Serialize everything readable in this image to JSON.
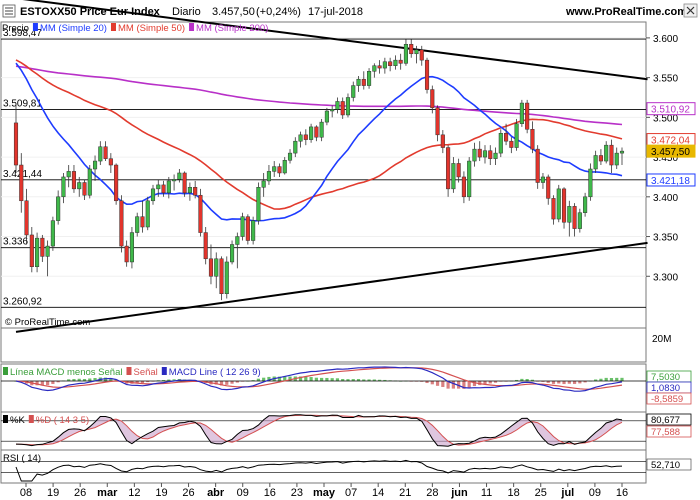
{
  "header": {
    "title": "ESTOXX50 Price Eur Index",
    "period": "Diario",
    "price": "3.457,50",
    "change": "(+0,24%)",
    "date": "17-jul-2018",
    "brand": "www.ProRealTime.com"
  },
  "price_legend": [
    {
      "label": "Precio",
      "color": "#000000"
    },
    {
      "label": "MM (Simple 20)",
      "color": "#1e3cff"
    },
    {
      "label": "MM (Simple 50)",
      "color": "#e23b2e"
    },
    {
      "label": "MM (Simple 200)",
      "color": "#b830c8"
    }
  ],
  "copyright": "© ProRealTime.com",
  "volume_label": "20M",
  "macd_legend": [
    {
      "label": "Línea MACD menos Señal",
      "color": "#3a9e3a"
    },
    {
      "label": "Señal",
      "color": "#d45050"
    },
    {
      "label": "MACD Line ( 12 26 9)",
      "color": "#2a2ac0"
    }
  ],
  "macd_values": [
    "7,5030",
    "1,0830",
    "-8,5859"
  ],
  "stoch_legend": [
    {
      "label": "%K",
      "color": "#000000"
    },
    {
      "label": "%D ( 14 3 5)",
      "color": "#d45050"
    }
  ],
  "stoch_values": [
    "80,677",
    "77,588"
  ],
  "rsi_legend": [
    {
      "label": "RSI ( 14)",
      "color": "#000000"
    }
  ],
  "rsi_value": "52,710",
  "horizontal_levels": [
    "3.598,47",
    "3.509,81",
    "3.421,44",
    "3.336",
    "3.260,92"
  ],
  "colors": {
    "up": "#3fb94a",
    "down": "#e3342c",
    "sma20": "#1e3cff",
    "sma50": "#e23b2e",
    "sma200": "#b830c8",
    "level_label": "#6060ff"
  },
  "chart_data": {
    "type": "candlestick",
    "title": "ESTOXX50 Price Eur Index",
    "ylim": [
      3250,
      3620
    ],
    "y_ticks": [
      "3.600",
      "3.550",
      "3.500",
      "3.450",
      "3.400",
      "3.350",
      "3.300"
    ],
    "x_ticks": [
      "08",
      "19",
      "26",
      "mar",
      "12",
      "19",
      "26",
      "abr",
      "09",
      "16",
      "23",
      "may",
      "07",
      "14",
      "21",
      "28",
      "jun",
      "11",
      "18",
      "25",
      "jul",
      "09",
      "16"
    ],
    "last_price_labels": [
      {
        "text": "3.510,92",
        "color": "#b830c8"
      },
      {
        "text": "3.472,04",
        "color": "#e23b2e"
      },
      {
        "text": "3.457,50",
        "color": "#e8b800"
      },
      {
        "text": "3.421,18",
        "color": "#1e3cff"
      }
    ],
    "trendlines": [
      {
        "from": [
          "2018-02-01",
          3650
        ],
        "to": [
          "2018-07-24",
          3548
        ]
      },
      {
        "from": [
          "2018-02-01",
          3230
        ],
        "to": [
          "2018-07-24",
          3342
        ]
      }
    ],
    "candles": [
      {
        "d": "2018-02-01",
        "o": 3493,
        "h": 3518,
        "l": 3430,
        "c": 3440
      },
      {
        "d": "2018-02-02",
        "o": 3440,
        "h": 3455,
        "l": 3380,
        "c": 3395
      },
      {
        "d": "2018-02-05",
        "o": 3395,
        "h": 3410,
        "l": 3340,
        "c": 3352
      },
      {
        "d": "2018-02-06",
        "o": 3352,
        "h": 3362,
        "l": 3305,
        "c": 3312
      },
      {
        "d": "2018-02-07",
        "o": 3312,
        "h": 3355,
        "l": 3305,
        "c": 3348
      },
      {
        "d": "2018-02-08",
        "o": 3348,
        "h": 3352,
        "l": 3318,
        "c": 3325
      },
      {
        "d": "2018-02-09",
        "o": 3325,
        "h": 3345,
        "l": 3300,
        "c": 3338
      },
      {
        "d": "2018-02-12",
        "o": 3338,
        "h": 3375,
        "l": 3332,
        "c": 3370
      },
      {
        "d": "2018-02-13",
        "o": 3370,
        "h": 3408,
        "l": 3365,
        "c": 3400
      },
      {
        "d": "2018-02-14",
        "o": 3400,
        "h": 3430,
        "l": 3392,
        "c": 3425
      },
      {
        "d": "2018-02-15",
        "o": 3425,
        "h": 3440,
        "l": 3412,
        "c": 3432
      },
      {
        "d": "2018-02-16",
        "o": 3432,
        "h": 3440,
        "l": 3405,
        "c": 3410
      },
      {
        "d": "2018-02-19",
        "o": 3410,
        "h": 3425,
        "l": 3400,
        "c": 3418
      },
      {
        "d": "2018-02-20",
        "o": 3418,
        "h": 3422,
        "l": 3396,
        "c": 3402
      },
      {
        "d": "2018-02-21",
        "o": 3402,
        "h": 3440,
        "l": 3398,
        "c": 3435
      },
      {
        "d": "2018-02-22",
        "o": 3435,
        "h": 3452,
        "l": 3420,
        "c": 3445
      },
      {
        "d": "2018-02-23",
        "o": 3445,
        "h": 3470,
        "l": 3440,
        "c": 3463
      },
      {
        "d": "2018-02-26",
        "o": 3463,
        "h": 3470,
        "l": 3445,
        "c": 3448
      },
      {
        "d": "2018-02-27",
        "o": 3448,
        "h": 3455,
        "l": 3430,
        "c": 3440
      },
      {
        "d": "2018-02-28",
        "o": 3440,
        "h": 3442,
        "l": 3390,
        "c": 3395
      },
      {
        "d": "2018-03-01",
        "o": 3395,
        "h": 3402,
        "l": 3330,
        "c": 3338
      },
      {
        "d": "2018-03-02",
        "o": 3338,
        "h": 3345,
        "l": 3312,
        "c": 3318
      },
      {
        "d": "2018-03-05",
        "o": 3318,
        "h": 3362,
        "l": 3310,
        "c": 3355
      },
      {
        "d": "2018-03-06",
        "o": 3355,
        "h": 3380,
        "l": 3350,
        "c": 3375
      },
      {
        "d": "2018-03-07",
        "o": 3375,
        "h": 3395,
        "l": 3355,
        "c": 3362
      },
      {
        "d": "2018-03-08",
        "o": 3362,
        "h": 3400,
        "l": 3358,
        "c": 3395
      },
      {
        "d": "2018-03-09",
        "o": 3395,
        "h": 3415,
        "l": 3390,
        "c": 3410
      },
      {
        "d": "2018-03-12",
        "o": 3410,
        "h": 3422,
        "l": 3400,
        "c": 3415
      },
      {
        "d": "2018-03-13",
        "o": 3415,
        "h": 3420,
        "l": 3400,
        "c": 3405
      },
      {
        "d": "2018-03-14",
        "o": 3405,
        "h": 3425,
        "l": 3398,
        "c": 3420
      },
      {
        "d": "2018-03-15",
        "o": 3420,
        "h": 3428,
        "l": 3408,
        "c": 3422
      },
      {
        "d": "2018-03-16",
        "o": 3422,
        "h": 3435,
        "l": 3418,
        "c": 3430
      },
      {
        "d": "2018-03-19",
        "o": 3430,
        "h": 3432,
        "l": 3400,
        "c": 3405
      },
      {
        "d": "2018-03-20",
        "o": 3405,
        "h": 3418,
        "l": 3395,
        "c": 3412
      },
      {
        "d": "2018-03-21",
        "o": 3412,
        "h": 3420,
        "l": 3398,
        "c": 3402
      },
      {
        "d": "2018-03-22",
        "o": 3402,
        "h": 3410,
        "l": 3350,
        "c": 3355
      },
      {
        "d": "2018-03-23",
        "o": 3355,
        "h": 3362,
        "l": 3315,
        "c": 3322
      },
      {
        "d": "2018-03-26",
        "o": 3322,
        "h": 3340,
        "l": 3290,
        "c": 3300
      },
      {
        "d": "2018-03-27",
        "o": 3300,
        "h": 3330,
        "l": 3285,
        "c": 3322
      },
      {
        "d": "2018-03-28",
        "o": 3322,
        "h": 3325,
        "l": 3270,
        "c": 3278
      },
      {
        "d": "2018-03-29",
        "o": 3278,
        "h": 3325,
        "l": 3272,
        "c": 3318
      },
      {
        "d": "2018-04-03",
        "o": 3318,
        "h": 3345,
        "l": 3315,
        "c": 3340
      },
      {
        "d": "2018-04-04",
        "o": 3340,
        "h": 3355,
        "l": 3310,
        "c": 3350
      },
      {
        "d": "2018-04-05",
        "o": 3350,
        "h": 3380,
        "l": 3345,
        "c": 3375
      },
      {
        "d": "2018-04-06",
        "o": 3375,
        "h": 3378,
        "l": 3340,
        "c": 3345
      },
      {
        "d": "2018-04-09",
        "o": 3345,
        "h": 3375,
        "l": 3340,
        "c": 3370
      },
      {
        "d": "2018-04-10",
        "o": 3370,
        "h": 3418,
        "l": 3365,
        "c": 3412
      },
      {
        "d": "2018-04-11",
        "o": 3412,
        "h": 3430,
        "l": 3400,
        "c": 3420
      },
      {
        "d": "2018-04-12",
        "o": 3420,
        "h": 3440,
        "l": 3415,
        "c": 3432
      },
      {
        "d": "2018-04-13",
        "o": 3432,
        "h": 3445,
        "l": 3425,
        "c": 3438
      },
      {
        "d": "2018-04-16",
        "o": 3438,
        "h": 3442,
        "l": 3425,
        "c": 3430
      },
      {
        "d": "2018-04-17",
        "o": 3430,
        "h": 3450,
        "l": 3428,
        "c": 3446
      },
      {
        "d": "2018-04-18",
        "o": 3446,
        "h": 3460,
        "l": 3442,
        "c": 3455
      },
      {
        "d": "2018-04-19",
        "o": 3455,
        "h": 3475,
        "l": 3450,
        "c": 3470
      },
      {
        "d": "2018-04-20",
        "o": 3470,
        "h": 3482,
        "l": 3462,
        "c": 3478
      },
      {
        "d": "2018-04-23",
        "o": 3478,
        "h": 3485,
        "l": 3465,
        "c": 3472
      },
      {
        "d": "2018-04-24",
        "o": 3472,
        "h": 3492,
        "l": 3468,
        "c": 3488
      },
      {
        "d": "2018-04-25",
        "o": 3488,
        "h": 3490,
        "l": 3470,
        "c": 3475
      },
      {
        "d": "2018-04-26",
        "o": 3475,
        "h": 3498,
        "l": 3470,
        "c": 3494
      },
      {
        "d": "2018-04-27",
        "o": 3494,
        "h": 3512,
        "l": 3490,
        "c": 3508
      },
      {
        "d": "2018-04-30",
        "o": 3508,
        "h": 3515,
        "l": 3500,
        "c": 3510
      },
      {
        "d": "2018-05-02",
        "o": 3510,
        "h": 3525,
        "l": 3505,
        "c": 3520
      },
      {
        "d": "2018-05-03",
        "o": 3520,
        "h": 3525,
        "l": 3498,
        "c": 3503
      },
      {
        "d": "2018-05-04",
        "o": 3503,
        "h": 3530,
        "l": 3500,
        "c": 3525
      },
      {
        "d": "2018-05-07",
        "o": 3525,
        "h": 3545,
        "l": 3520,
        "c": 3540
      },
      {
        "d": "2018-05-08",
        "o": 3540,
        "h": 3552,
        "l": 3532,
        "c": 3548
      },
      {
        "d": "2018-05-09",
        "o": 3548,
        "h": 3558,
        "l": 3535,
        "c": 3540
      },
      {
        "d": "2018-05-10",
        "o": 3540,
        "h": 3562,
        "l": 3536,
        "c": 3558
      },
      {
        "d": "2018-05-11",
        "o": 3558,
        "h": 3568,
        "l": 3550,
        "c": 3565
      },
      {
        "d": "2018-05-14",
        "o": 3565,
        "h": 3572,
        "l": 3555,
        "c": 3562
      },
      {
        "d": "2018-05-15",
        "o": 3562,
        "h": 3575,
        "l": 3555,
        "c": 3570
      },
      {
        "d": "2018-05-16",
        "o": 3570,
        "h": 3575,
        "l": 3558,
        "c": 3565
      },
      {
        "d": "2018-05-17",
        "o": 3565,
        "h": 3578,
        "l": 3560,
        "c": 3572
      },
      {
        "d": "2018-05-18",
        "o": 3572,
        "h": 3580,
        "l": 3560,
        "c": 3568
      },
      {
        "d": "2018-05-21",
        "o": 3568,
        "h": 3598,
        "l": 3565,
        "c": 3592
      },
      {
        "d": "2018-05-22",
        "o": 3592,
        "h": 3598,
        "l": 3575,
        "c": 3580
      },
      {
        "d": "2018-05-23",
        "o": 3580,
        "h": 3590,
        "l": 3568,
        "c": 3585
      },
      {
        "d": "2018-05-24",
        "o": 3585,
        "h": 3590,
        "l": 3565,
        "c": 3572
      },
      {
        "d": "2018-05-25",
        "o": 3572,
        "h": 3575,
        "l": 3530,
        "c": 3535
      },
      {
        "d": "2018-05-28",
        "o": 3535,
        "h": 3540,
        "l": 3505,
        "c": 3512
      },
      {
        "d": "2018-05-29",
        "o": 3512,
        "h": 3515,
        "l": 3470,
        "c": 3478
      },
      {
        "d": "2018-05-30",
        "o": 3478,
        "h": 3484,
        "l": 3455,
        "c": 3462
      },
      {
        "d": "2018-05-31",
        "o": 3462,
        "h": 3465,
        "l": 3400,
        "c": 3410
      },
      {
        "d": "2018-06-01",
        "o": 3410,
        "h": 3450,
        "l": 3405,
        "c": 3442
      },
      {
        "d": "2018-06-04",
        "o": 3442,
        "h": 3448,
        "l": 3418,
        "c": 3425
      },
      {
        "d": "2018-06-05",
        "o": 3425,
        "h": 3432,
        "l": 3392,
        "c": 3400
      },
      {
        "d": "2018-06-06",
        "o": 3400,
        "h": 3450,
        "l": 3395,
        "c": 3445
      },
      {
        "d": "2018-06-07",
        "o": 3445,
        "h": 3468,
        "l": 3438,
        "c": 3460
      },
      {
        "d": "2018-06-08",
        "o": 3460,
        "h": 3470,
        "l": 3445,
        "c": 3450
      },
      {
        "d": "2018-06-11",
        "o": 3450,
        "h": 3465,
        "l": 3442,
        "c": 3458
      },
      {
        "d": "2018-06-12",
        "o": 3458,
        "h": 3465,
        "l": 3440,
        "c": 3448
      },
      {
        "d": "2018-06-13",
        "o": 3448,
        "h": 3462,
        "l": 3440,
        "c": 3455
      },
      {
        "d": "2018-06-14",
        "o": 3455,
        "h": 3485,
        "l": 3450,
        "c": 3480
      },
      {
        "d": "2018-06-15",
        "o": 3480,
        "h": 3492,
        "l": 3465,
        "c": 3470
      },
      {
        "d": "2018-06-18",
        "o": 3470,
        "h": 3475,
        "l": 3455,
        "c": 3462
      },
      {
        "d": "2018-06-19",
        "o": 3462,
        "h": 3498,
        "l": 3458,
        "c": 3492
      },
      {
        "d": "2018-06-20",
        "o": 3492,
        "h": 3522,
        "l": 3488,
        "c": 3518
      },
      {
        "d": "2018-06-21",
        "o": 3518,
        "h": 3522,
        "l": 3480,
        "c": 3485
      },
      {
        "d": "2018-06-22",
        "o": 3485,
        "h": 3495,
        "l": 3455,
        "c": 3460
      },
      {
        "d": "2018-06-25",
        "o": 3460,
        "h": 3465,
        "l": 3410,
        "c": 3418
      },
      {
        "d": "2018-06-26",
        "o": 3418,
        "h": 3430,
        "l": 3410,
        "c": 3425
      },
      {
        "d": "2018-06-27",
        "o": 3425,
        "h": 3428,
        "l": 3390,
        "c": 3398
      },
      {
        "d": "2018-06-28",
        "o": 3398,
        "h": 3402,
        "l": 3365,
        "c": 3372
      },
      {
        "d": "2018-06-29",
        "o": 3372,
        "h": 3415,
        "l": 3368,
        "c": 3410
      },
      {
        "d": "2018-07-02",
        "o": 3410,
        "h": 3412,
        "l": 3360,
        "c": 3368
      },
      {
        "d": "2018-07-03",
        "o": 3368,
        "h": 3395,
        "l": 3350,
        "c": 3388
      },
      {
        "d": "2018-07-04",
        "o": 3388,
        "h": 3392,
        "l": 3350,
        "c": 3360
      },
      {
        "d": "2018-07-05",
        "o": 3360,
        "h": 3385,
        "l": 3355,
        "c": 3380
      },
      {
        "d": "2018-07-06",
        "o": 3380,
        "h": 3405,
        "l": 3375,
        "c": 3400
      },
      {
        "d": "2018-07-09",
        "o": 3400,
        "h": 3442,
        "l": 3395,
        "c": 3435
      },
      {
        "d": "2018-07-10",
        "o": 3435,
        "h": 3458,
        "l": 3430,
        "c": 3452
      },
      {
        "d": "2018-07-11",
        "o": 3452,
        "h": 3460,
        "l": 3440,
        "c": 3445
      },
      {
        "d": "2018-07-12",
        "o": 3445,
        "h": 3470,
        "l": 3442,
        "c": 3465
      },
      {
        "d": "2018-07-13",
        "o": 3465,
        "h": 3472,
        "l": 3430,
        "c": 3440
      },
      {
        "d": "2018-07-16",
        "o": 3440,
        "h": 3462,
        "l": 3435,
        "c": 3455
      },
      {
        "d": "2018-07-17",
        "o": 3455,
        "h": 3462,
        "l": 3440,
        "c": 3457.5
      }
    ]
  }
}
